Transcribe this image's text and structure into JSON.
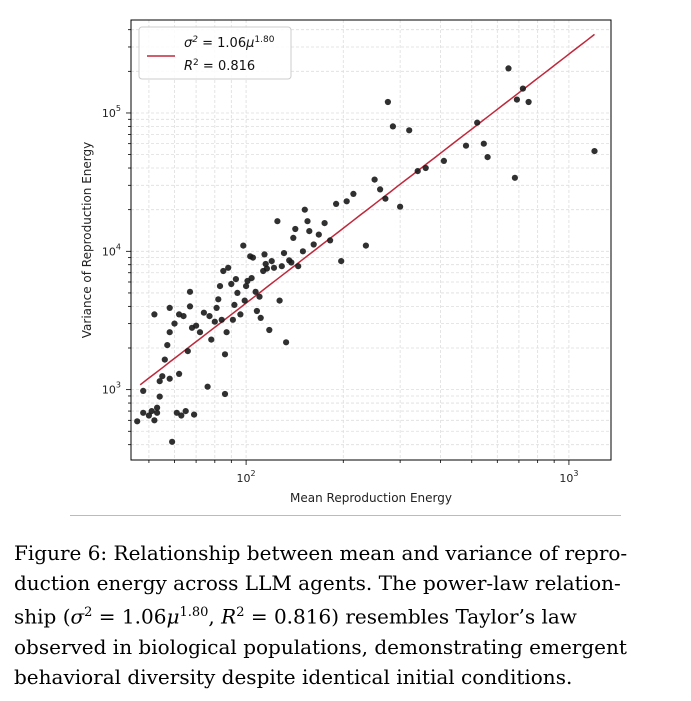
{
  "chart_data": {
    "type": "scatter",
    "xlabel": "Mean Reproduction Energy",
    "ylabel": "Variance of Reproduction Energy",
    "xscale": "log",
    "yscale": "log",
    "xlim": [
      44,
      1350
    ],
    "ylim": [
      310,
      470000
    ],
    "grid": true,
    "legend_position": "top-left",
    "x_tick_labels": [
      "10^2",
      "10^3"
    ],
    "y_tick_labels": [
      "10^3",
      "10^4",
      "10^5"
    ],
    "fit": {
      "label_line1": "σ² = 1.06μ^1.80",
      "label_line2": "R² = 0.816",
      "a": 1.06,
      "b": 1.8,
      "x_range": [
        47,
        1200
      ],
      "color": "#c0283b"
    },
    "point_color": "#1a1a1a",
    "points": [
      [
        46,
        590
      ],
      [
        48,
        680
      ],
      [
        48,
        980
      ],
      [
        50,
        650
      ],
      [
        51,
        700
      ],
      [
        52,
        3500
      ],
      [
        52,
        600
      ],
      [
        53,
        740
      ],
      [
        53,
        680
      ],
      [
        54,
        890
      ],
      [
        54,
        1150
      ],
      [
        55,
        1250
      ],
      [
        56,
        1650
      ],
      [
        57,
        2100
      ],
      [
        58,
        3900
      ],
      [
        58,
        1200
      ],
      [
        58,
        2600
      ],
      [
        59,
        420
      ],
      [
        60,
        3000
      ],
      [
        61,
        680
      ],
      [
        62,
        1300
      ],
      [
        62,
        3500
      ],
      [
        63,
        650
      ],
      [
        64,
        3400
      ],
      [
        65,
        700
      ],
      [
        66,
        1900
      ],
      [
        67,
        5100
      ],
      [
        67,
        4000
      ],
      [
        68,
        2800
      ],
      [
        69,
        660
      ],
      [
        70,
        2900
      ],
      [
        72,
        2600
      ],
      [
        74,
        3600
      ],
      [
        76,
        1050
      ],
      [
        77,
        3400
      ],
      [
        78,
        2300
      ],
      [
        80,
        3100
      ],
      [
        81,
        3900
      ],
      [
        82,
        4500
      ],
      [
        83,
        5600
      ],
      [
        84,
        3200
      ],
      [
        85,
        7200
      ],
      [
        86,
        1800
      ],
      [
        86,
        930
      ],
      [
        87,
        2600
      ],
      [
        88,
        7600
      ],
      [
        90,
        5800
      ],
      [
        91,
        3200
      ],
      [
        92,
        4100
      ],
      [
        93,
        6300
      ],
      [
        94,
        5000
      ],
      [
        96,
        3500
      ],
      [
        98,
        11000
      ],
      [
        99,
        4400
      ],
      [
        100,
        5600
      ],
      [
        101,
        6100
      ],
      [
        103,
        9200
      ],
      [
        104,
        6400
      ],
      [
        105,
        9000
      ],
      [
        107,
        5100
      ],
      [
        108,
        3700
      ],
      [
        110,
        4700
      ],
      [
        111,
        3300
      ],
      [
        113,
        7200
      ],
      [
        114,
        9500
      ],
      [
        115,
        8100
      ],
      [
        116,
        7500
      ],
      [
        118,
        2700
      ],
      [
        120,
        8500
      ],
      [
        122,
        7600
      ],
      [
        125,
        16500
      ],
      [
        127,
        4400
      ],
      [
        129,
        7800
      ],
      [
        131,
        9700
      ],
      [
        133,
        2200
      ],
      [
        136,
        8600
      ],
      [
        138,
        8300
      ],
      [
        140,
        12500
      ],
      [
        142,
        14500
      ],
      [
        145,
        7800
      ],
      [
        150,
        10000
      ],
      [
        152,
        20000
      ],
      [
        155,
        16500
      ],
      [
        157,
        14000
      ],
      [
        162,
        11200
      ],
      [
        168,
        13200
      ],
      [
        175,
        16000
      ],
      [
        182,
        12000
      ],
      [
        190,
        22000
      ],
      [
        197,
        8500
      ],
      [
        205,
        23000
      ],
      [
        215,
        26000
      ],
      [
        235,
        11000
      ],
      [
        250,
        33000
      ],
      [
        260,
        28000
      ],
      [
        270,
        24000
      ],
      [
        275,
        120000
      ],
      [
        285,
        80000
      ],
      [
        300,
        21000
      ],
      [
        320,
        75000
      ],
      [
        340,
        38000
      ],
      [
        360,
        40000
      ],
      [
        410,
        45000
      ],
      [
        480,
        58000
      ],
      [
        520,
        85000
      ],
      [
        545,
        60000
      ],
      [
        560,
        48000
      ],
      [
        650,
        210000
      ],
      [
        680,
        34000
      ],
      [
        690,
        125000
      ],
      [
        720,
        150000
      ],
      [
        750,
        120000
      ],
      [
        1200,
        53000
      ]
    ]
  },
  "caption": {
    "line1": "Figure 6: Relationship between mean and variance of repro-",
    "line2": "duction energy across LLM agents. The power-law relation-",
    "line3": "ship (σ² = 1.06μ^1.80, R² = 0.816) resembles Taylor’s law",
    "line4": "observed in biological populations, demonstrating emergent",
    "line5": "behavioral diversity despite identical initial conditions."
  }
}
